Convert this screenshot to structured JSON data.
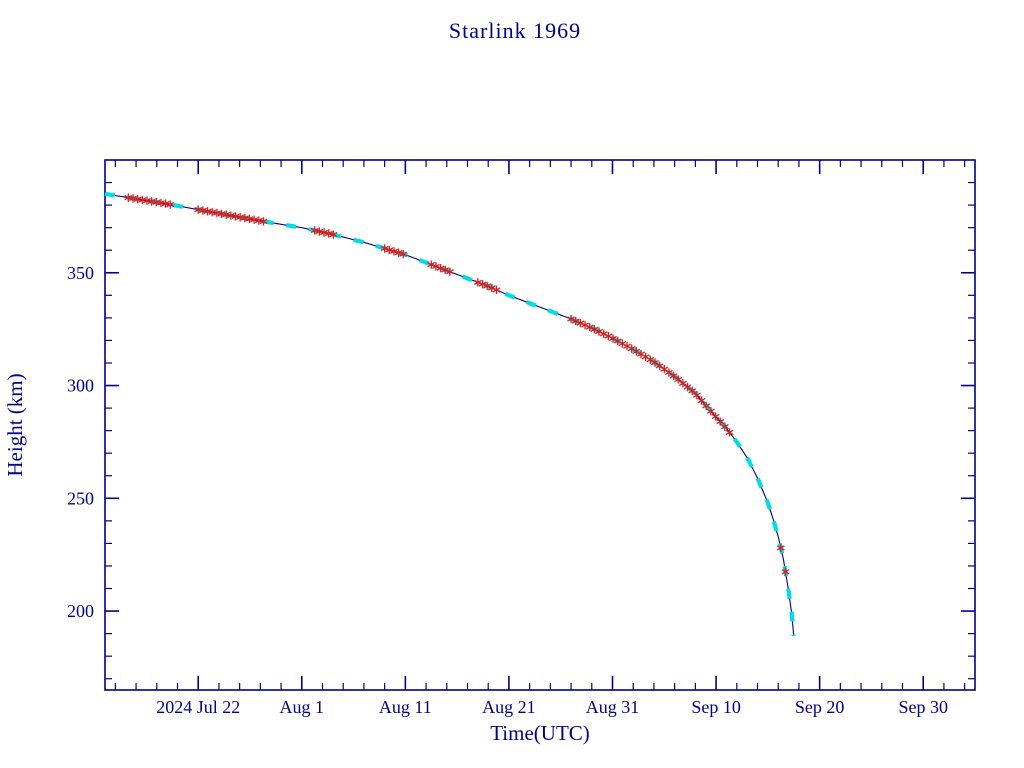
{
  "colors": {
    "axis_and_text": "#00008b",
    "track_line": "#00008b",
    "cyan_marker": "#00dde6",
    "red_marker": "#d42020",
    "background": "#ffffff"
  },
  "chart_data": {
    "type": "line",
    "title": "Starlink 1969",
    "xlabel": "Time(UTC)",
    "ylabel": "Height (km)",
    "legend": "none",
    "grid": "off",
    "x_axis": {
      "tick_labels": [
        "2024 Jul 22",
        "Aug 1",
        "Aug 11",
        "Aug 21",
        "Aug 31",
        "Sep 10",
        "Sep 20",
        "Sep 30"
      ],
      "tick_days_from_first_label": [
        0,
        10,
        20,
        30,
        40,
        50,
        60,
        70
      ],
      "range_days_from_first_label": [
        -9,
        75
      ],
      "minor_tick_step_days": 2
    },
    "y_axis": {
      "tick_labels": [
        "200",
        "250",
        "300",
        "350"
      ],
      "tick_values": [
        200,
        250,
        300,
        350
      ],
      "range": [
        165,
        400
      ],
      "minor_tick_step": 10
    },
    "series": [
      {
        "name": "orbital-decay-track",
        "description": "Satellite height above Earth vs time; slow decay then rapid reentry plunge",
        "x_days_from_first_label": [
          -9,
          -7,
          -5,
          -3,
          0,
          3,
          6,
          10,
          13,
          16,
          20,
          22,
          24,
          26,
          28,
          30,
          32,
          34,
          36,
          38,
          40,
          42,
          44,
          46,
          48,
          50,
          51,
          52,
          53,
          54,
          55,
          55.5,
          56,
          56.5,
          57,
          57.3,
          57.5
        ],
        "height_km": [
          385,
          383.5,
          382,
          380.5,
          378,
          375.5,
          373,
          370,
          367,
          363.5,
          358,
          354.5,
          351,
          347.5,
          344,
          340,
          336.5,
          333,
          329.5,
          325.5,
          321,
          316,
          310.5,
          304,
          296.5,
          286,
          281,
          275,
          268,
          259,
          248,
          241,
          233,
          223,
          209,
          199,
          189
        ],
        "line_color": "#00008b",
        "marker_overlays": [
          {
            "name": "cyan-observation-dashes",
            "color": "#00dde6",
            "style": "thick-dash"
          },
          {
            "name": "red-observation-asterisks",
            "color": "#d42020",
            "style": "asterisk"
          }
        ]
      }
    ]
  }
}
